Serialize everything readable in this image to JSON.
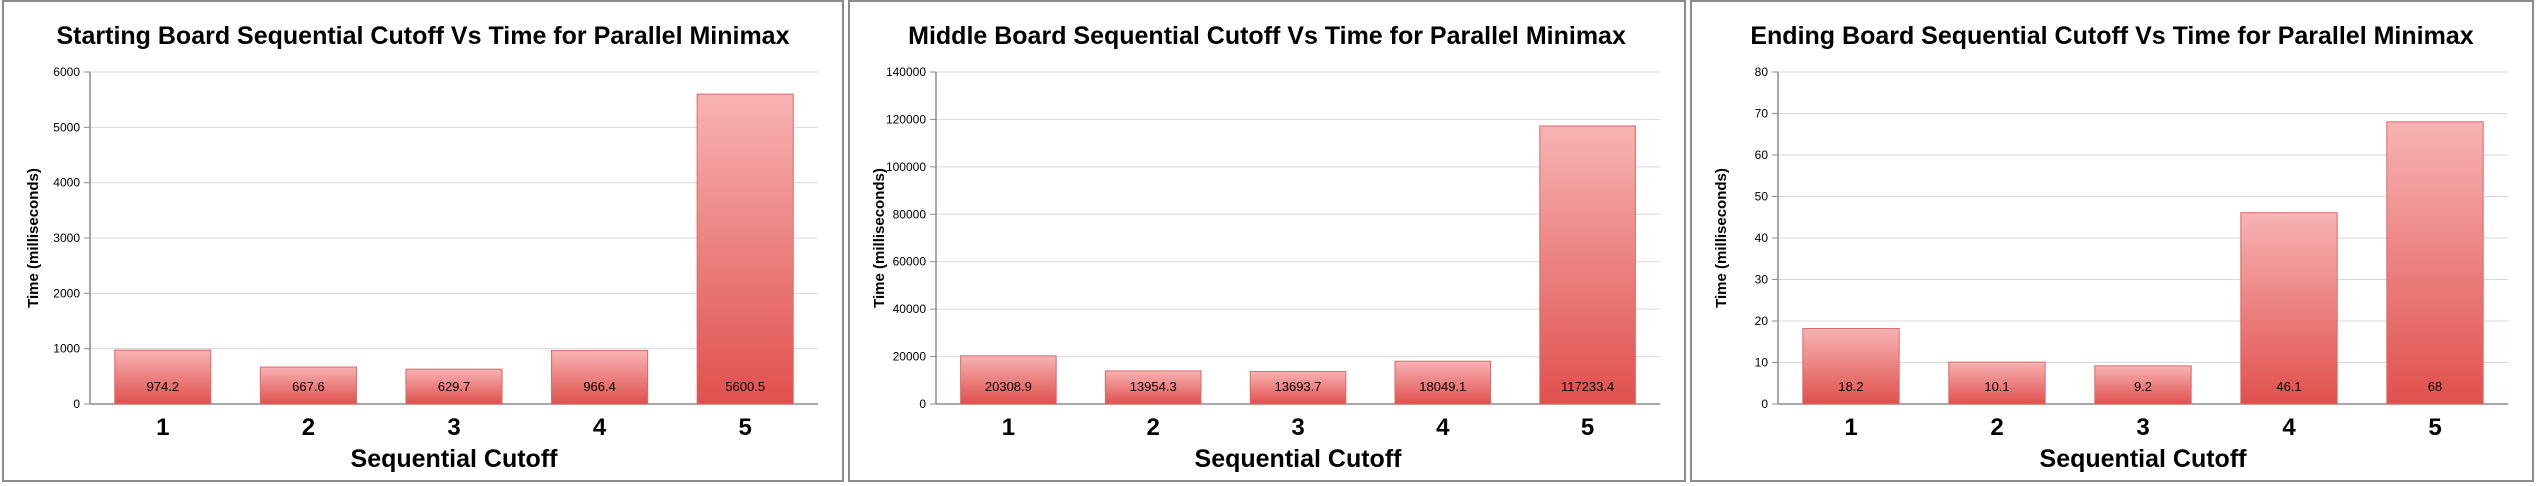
{
  "colors": {
    "bar_top": "#f7b3b3",
    "bar_bottom": "#e0504d",
    "bar_stroke": "#d96a6a",
    "axis": "#8c8c8c",
    "grid": "#d9d9d9",
    "text": "#000000"
  },
  "chart_data": [
    {
      "type": "bar",
      "title": "Starting Board Sequential Cutoff Vs Time for Parallel Minimax",
      "xlabel": "Sequential Cutoff",
      "ylabel": "Time (milliseconds)",
      "categories": [
        "1",
        "2",
        "3",
        "4",
        "5"
      ],
      "values": [
        974.2,
        667.6,
        629.7,
        966.4,
        5600.5
      ],
      "data_labels": [
        "974.2",
        "667.6",
        "629.7",
        "966.4",
        "5600.5"
      ],
      "ylim": [
        0,
        6000
      ],
      "yticks": [
        "0",
        "1000",
        "2000",
        "3000",
        "4000",
        "5000",
        "6000"
      ],
      "grid": true,
      "legend": "none"
    },
    {
      "type": "bar",
      "title": "Middle Board Sequential Cutoff Vs Time for Parallel Minimax",
      "xlabel": "Sequential Cutoff",
      "ylabel": "Time (milliseconds)",
      "categories": [
        "1",
        "2",
        "3",
        "4",
        "5"
      ],
      "values": [
        20308.9,
        13954.3,
        13693.7,
        18049.1,
        117233.4
      ],
      "data_labels": [
        "20308.9",
        "13954.3",
        "13693.7",
        "18049.1",
        "117233.4"
      ],
      "ylim": [
        0,
        140000
      ],
      "yticks": [
        "0",
        "20000",
        "40000",
        "60000",
        "80000",
        "100000",
        "120000",
        "140000"
      ],
      "grid": true,
      "legend": "none"
    },
    {
      "type": "bar",
      "title": "Ending Board Sequential Cutoff Vs Time for Parallel Minimax",
      "xlabel": "Sequential Cutoff",
      "ylabel": "Time (milliseconds)",
      "categories": [
        "1",
        "2",
        "3",
        "4",
        "5"
      ],
      "values": [
        18.2,
        10.1,
        9.2,
        46.1,
        68
      ],
      "data_labels": [
        "18.2",
        "10.1",
        "9.2",
        "46.1",
        "68"
      ],
      "ylim": [
        0,
        80
      ],
      "yticks": [
        "0",
        "10",
        "20",
        "30",
        "40",
        "50",
        "60",
        "70",
        "80"
      ],
      "grid": true,
      "legend": "none"
    }
  ]
}
